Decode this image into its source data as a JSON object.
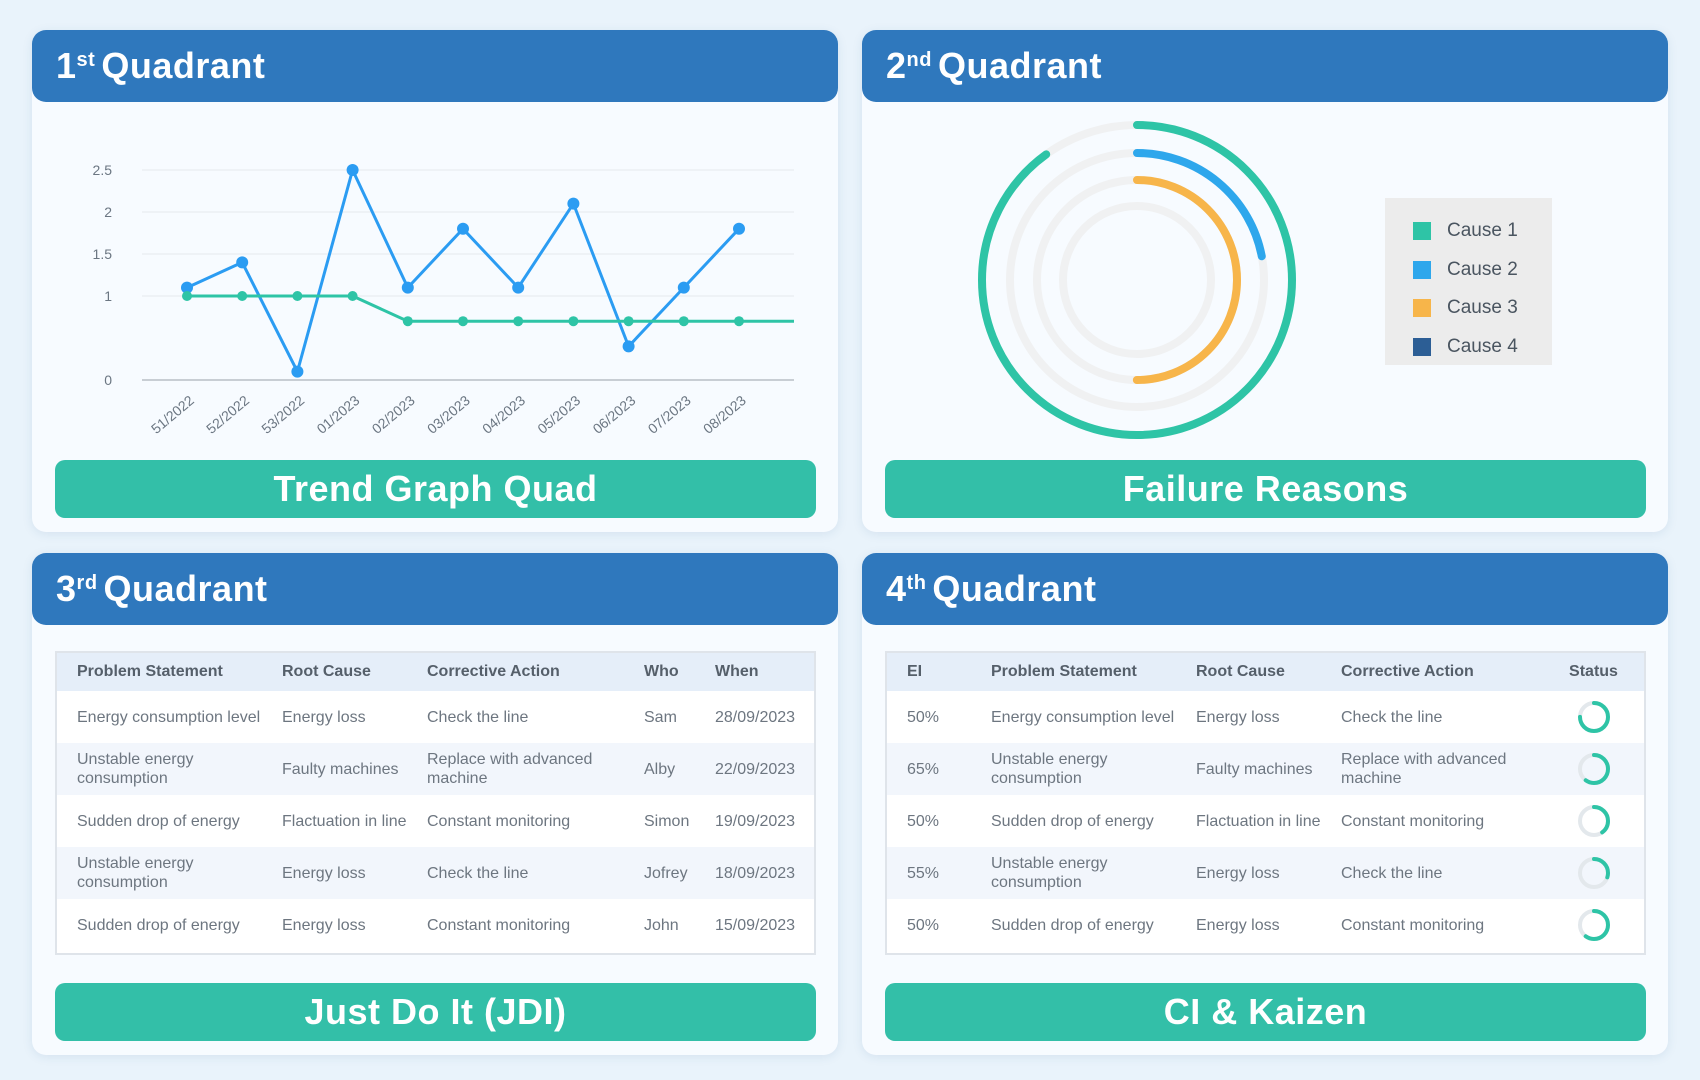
{
  "quadrants": {
    "q1": {
      "num": "1",
      "sup": "st",
      "label": "Quadrant",
      "footer": "Trend Graph Quad"
    },
    "q2": {
      "num": "2",
      "sup": "nd",
      "label": "Quadrant",
      "footer": "Failure Reasons"
    },
    "q3": {
      "num": "3",
      "sup": "rd",
      "label": "Quadrant",
      "footer": "Just Do It (JDI)"
    },
    "q4": {
      "num": "4",
      "sup": "th",
      "label": "Quadrant",
      "footer": "CI & Kaizen"
    }
  },
  "chart_data": [
    {
      "type": "line",
      "categories": [
        "51/2022",
        "52/2022",
        "53/2022",
        "01/2023",
        "02/2023",
        "03/2023",
        "04/2023",
        "05/2023",
        "06/2023",
        "07/2023",
        "08/2023"
      ],
      "ylim": [
        0,
        2.5
      ],
      "yticks": [
        "0",
        "1",
        "1.5",
        "2",
        "2.5"
      ],
      "grid": true,
      "series": [
        {
          "color": "#2b9cf2",
          "values": [
            1.1,
            1.4,
            0.1,
            2.5,
            1.1,
            1.8,
            1.1,
            2.1,
            0.4,
            1.1,
            1.8
          ]
        },
        {
          "color": "#2ec4a6",
          "values": [
            1.0,
            1.0,
            1.0,
            1.0,
            0.7,
            0.7,
            0.7,
            0.7,
            0.7,
            0.7,
            0.7
          ]
        }
      ]
    },
    {
      "type": "pie",
      "variant": "radial-bar",
      "legend_position": "right",
      "series": [
        {
          "name": "Cause 1",
          "color": "#2ec4a6",
          "value": 0.9
        },
        {
          "name": "Cause 2",
          "color": "#2ea7ec",
          "value": 0.22
        },
        {
          "name": "Cause 3",
          "color": "#f7b54a",
          "value": 0.5
        },
        {
          "name": "Cause 4",
          "color": "#2c5e95",
          "value": 0
        }
      ]
    }
  ],
  "jdi_table": {
    "headers": [
      "Problem Statement",
      "Root Cause",
      "Corrective Action",
      "Who",
      "When"
    ],
    "rows": [
      [
        "Energy consumption level",
        "Energy loss",
        "Check the line",
        "Sam",
        "28/09/2023"
      ],
      [
        "Unstable energy consumption",
        "Faulty machines",
        "Replace with advanced machine",
        "Alby",
        "22/09/2023"
      ],
      [
        "Sudden drop of energy",
        "Flactuation in line",
        "Constant monitoring",
        "Simon",
        "19/09/2023"
      ],
      [
        "Unstable energy consumption",
        "Energy loss",
        "Check the line",
        "Jofrey",
        "18/09/2023"
      ],
      [
        "Sudden drop of energy",
        "Energy loss",
        "Constant monitoring",
        "John",
        "15/09/2023"
      ]
    ]
  },
  "kaizen_table": {
    "headers": [
      "EI",
      "Problem Statement",
      "Root Cause",
      "Corrective Action",
      "Status"
    ],
    "rows": [
      [
        "50%",
        "Energy consumption level",
        "Energy loss",
        "Check the line"
      ],
      [
        "65%",
        "Unstable energy consumption",
        "Faulty machines",
        "Replace with advanced machine"
      ],
      [
        "50%",
        "Sudden drop of energy",
        "Flactuation in line",
        "Constant monitoring"
      ],
      [
        "55%",
        "Unstable energy consumption",
        "Energy loss",
        "Check the line"
      ],
      [
        "50%",
        "Sudden drop of energy",
        "Energy loss",
        "Constant monitoring"
      ]
    ],
    "status_progress": [
      0.75,
      0.6,
      0.4,
      0.3,
      0.6
    ],
    "status_color": "#2ec4a6"
  },
  "colors": {
    "header": "#2f78bd",
    "footer": "#33bfa8"
  }
}
